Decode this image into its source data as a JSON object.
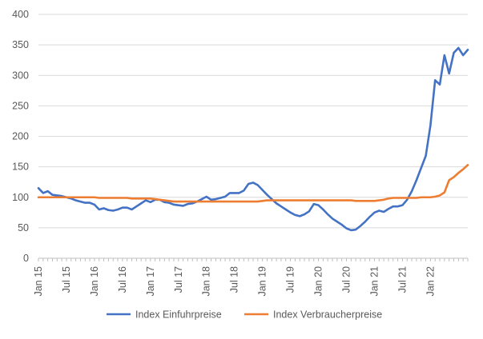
{
  "chart_data": {
    "type": "line",
    "title": "",
    "xlabel": "",
    "ylabel": "",
    "ylim": [
      0,
      400
    ],
    "yticks": [
      0,
      50,
      100,
      150,
      200,
      250,
      300,
      350,
      400
    ],
    "x_tick_labels": [
      "Jan 15",
      "Jul 15",
      "Jan 16",
      "Jul 16",
      "Jan 17",
      "Jul 17",
      "Jan 18",
      "Jul 18",
      "Jan 19",
      "Jul 19",
      "Jan 20",
      "Jul 20",
      "Jan 21",
      "Jul 21",
      "Jan 22"
    ],
    "x_tick_every_months": 6,
    "grid": "horizontal",
    "legend_position": "bottom",
    "series": [
      {
        "name": "Index Einfuhrpreise",
        "color": "#4472C4",
        "values": [
          115,
          107,
          110,
          104,
          103,
          102,
          100,
          98,
          95,
          93,
          91,
          91,
          88,
          80,
          82,
          79,
          78,
          80,
          83,
          83,
          80,
          85,
          90,
          95,
          92,
          96,
          96,
          92,
          91,
          88,
          87,
          86,
          89,
          90,
          93,
          97,
          101,
          96,
          97,
          99,
          101,
          107,
          107,
          107,
          111,
          122,
          124,
          120,
          112,
          104,
          97,
          90,
          85,
          80,
          75,
          71,
          69,
          72,
          77,
          89,
          87,
          80,
          72,
          65,
          60,
          55,
          49,
          46,
          47,
          53,
          60,
          68,
          75,
          78,
          76,
          81,
          85,
          85,
          87,
          96,
          110,
          128,
          148,
          168,
          218,
          292,
          285,
          333,
          303,
          337,
          345,
          333,
          342
        ]
      },
      {
        "name": "Index Verbraucherpreise",
        "color": "#ED7D31",
        "values": [
          100,
          100,
          100,
          100,
          100,
          100,
          100,
          100,
          100,
          100,
          100,
          100,
          100,
          99,
          99,
          99,
          99,
          99,
          99,
          99,
          98,
          98,
          98,
          98,
          98,
          97,
          96,
          95,
          94,
          93,
          93,
          93,
          93,
          93,
          93,
          93,
          93,
          93,
          93,
          93,
          93,
          93,
          93,
          93,
          93,
          93,
          93,
          93,
          94,
          95,
          95,
          95,
          95,
          95,
          95,
          95,
          95,
          95,
          95,
          95,
          95,
          95,
          95,
          95,
          95,
          95,
          95,
          95,
          94,
          94,
          94,
          94,
          94,
          95,
          96,
          98,
          99,
          99,
          99,
          99,
          99,
          99,
          100,
          100,
          100,
          101,
          103,
          108,
          128,
          133,
          140,
          146,
          153
        ]
      }
    ]
  }
}
